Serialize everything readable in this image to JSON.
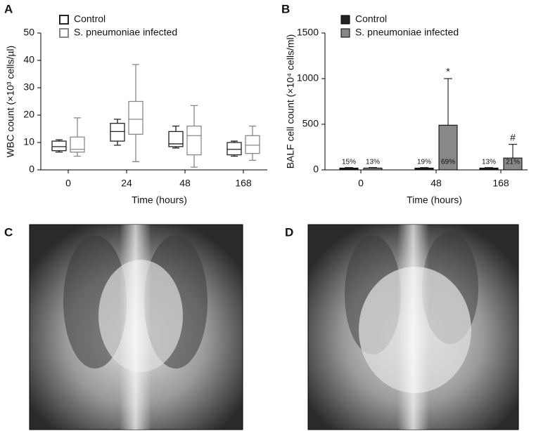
{
  "chart_data": [
    {
      "type": "box",
      "panel": "A",
      "ylabel": "WBC count (×10³ cells/µl)",
      "xlabel": "Time (hours)",
      "categories": [
        "0",
        "24",
        "48",
        "168"
      ],
      "series": [
        {
          "name": "Control",
          "color": "#222222",
          "min": [
            6.5,
            9,
            8,
            5
          ],
          "q1": [
            7,
            10.5,
            8.5,
            5.5
          ],
          "median": [
            8.5,
            14,
            9.5,
            7.5
          ],
          "q3": [
            10.5,
            17,
            14,
            10
          ],
          "max": [
            11,
            18.5,
            16,
            10.5
          ]
        },
        {
          "name": "S. pneumoniae infected",
          "color": "#888888",
          "min": [
            5,
            3,
            1,
            3.5
          ],
          "q1": [
            6.5,
            13,
            5.5,
            6
          ],
          "median": [
            7.5,
            18.5,
            12.5,
            9
          ],
          "q3": [
            12,
            25,
            16,
            12.5
          ],
          "max": [
            19,
            38.5,
            23.5,
            16
          ]
        }
      ],
      "ylim": [
        0,
        50
      ],
      "yticks": [
        0,
        10,
        20,
        30,
        40,
        50
      ]
    },
    {
      "type": "bar",
      "panel": "B",
      "ylabel": "BALF cell count (×10⁴ cells/ml)",
      "xlabel": "Time (hours)",
      "categories": [
        "0",
        "48",
        "168"
      ],
      "series": [
        {
          "name": "Control",
          "color": "#222222",
          "values": [
            20,
            20,
            20
          ],
          "errors": [
            5,
            5,
            5
          ],
          "percent_labels": [
            "15%",
            "19%",
            "13%"
          ],
          "significance": [
            null,
            null,
            null
          ]
        },
        {
          "name": "S. pneumoniae infected",
          "color": "#888888",
          "values": [
            20,
            490,
            130
          ],
          "errors": [
            5,
            510,
            150
          ],
          "percent_labels": [
            "13%",
            "69%",
            "21%"
          ],
          "significance": [
            null,
            "*",
            "#"
          ]
        }
      ],
      "ylim": [
        0,
        1500
      ],
      "yticks": [
        0,
        500,
        1000,
        1500
      ]
    }
  ],
  "images": [
    {
      "label": "C"
    },
    {
      "label": "D"
    }
  ]
}
